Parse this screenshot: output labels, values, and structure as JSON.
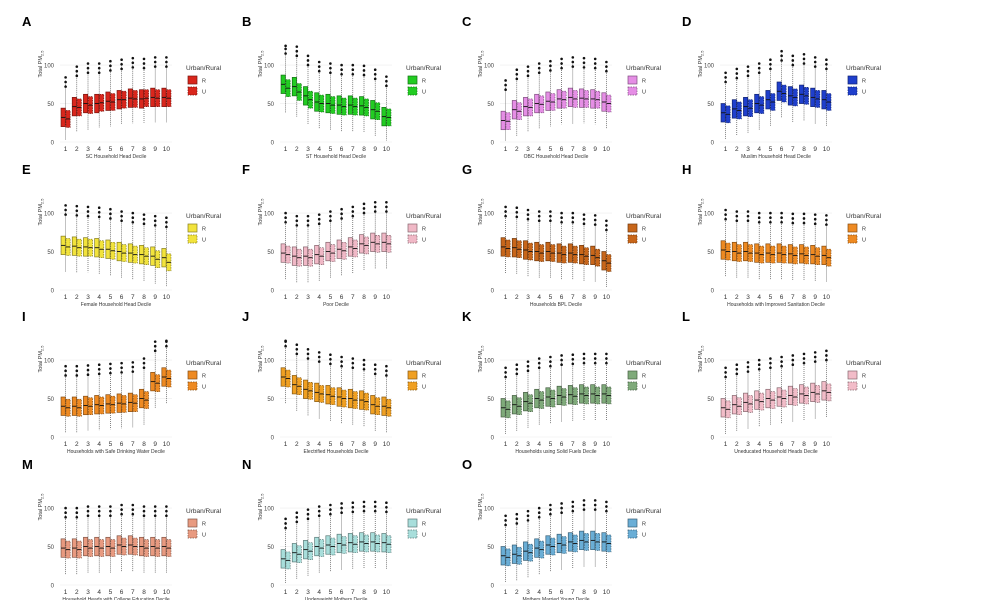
{
  "figure": {
    "y_axis_label": "Total PM",
    "y_axis_sub": "2.5",
    "legend_title": "Urban/Rural",
    "legend_r": "R",
    "legend_u": "U"
  },
  "chart_data": [
    {
      "panel": "A",
      "type": "boxplot",
      "title": "",
      "xlabel": "SC Household Head Decile",
      "ylabel": "Total PM2.5",
      "ylim": [
        0,
        130
      ],
      "yticks": [
        0,
        50,
        100
      ],
      "categories": [
        "1",
        "2",
        "3",
        "4",
        "5",
        "6",
        "7",
        "8",
        "9",
        "10"
      ],
      "color": "#d9261c",
      "series": [
        {
          "name": "R",
          "medians": [
            32,
            46,
            50,
            50,
            53,
            55,
            57,
            56,
            58,
            58
          ]
        },
        {
          "name": "U",
          "medians": [
            30,
            45,
            48,
            51,
            52,
            55,
            56,
            57,
            57,
            57
          ]
        }
      ]
    },
    {
      "panel": "B",
      "type": "boxplot",
      "title": "",
      "xlabel": "ST Household Head Decile",
      "ylabel": "Total PM2.5",
      "ylim": [
        0,
        130
      ],
      "yticks": [
        0,
        50,
        100
      ],
      "categories": [
        "1",
        "2",
        "3",
        "4",
        "5",
        "6",
        "7",
        "8",
        "9",
        "10"
      ],
      "color": "#22cc22",
      "series": [
        {
          "name": "R",
          "medians": [
            75,
            72,
            60,
            52,
            50,
            48,
            48,
            47,
            42,
            33
          ]
        },
        {
          "name": "U",
          "medians": [
            70,
            65,
            55,
            50,
            48,
            46,
            46,
            45,
            40,
            32
          ]
        }
      ]
    },
    {
      "panel": "C",
      "type": "boxplot",
      "title": "",
      "xlabel": "OBC Household Head Decile",
      "ylabel": "Total PM2.5",
      "ylim": [
        0,
        130
      ],
      "yticks": [
        0,
        50,
        100
      ],
      "categories": [
        "1",
        "2",
        "3",
        "4",
        "5",
        "6",
        "7",
        "8",
        "9",
        "10"
      ],
      "color": "#e58ee5",
      "series": [
        {
          "name": "R",
          "medians": [
            28,
            42,
            46,
            50,
            53,
            56,
            58,
            57,
            56,
            52
          ]
        },
        {
          "name": "U",
          "medians": [
            27,
            40,
            45,
            49,
            52,
            55,
            56,
            56,
            55,
            50
          ]
        }
      ]
    },
    {
      "panel": "D",
      "type": "boxplot",
      "title": "",
      "xlabel": "Muslim Household Head Decile",
      "ylabel": "Total PM2.5",
      "ylim": [
        0,
        130
      ],
      "yticks": [
        0,
        50,
        100
      ],
      "categories": [
        "1",
        "2",
        "3",
        "4",
        "5",
        "6",
        "7",
        "8",
        "9",
        "10"
      ],
      "color": "#1f3fcc",
      "series": [
        {
          "name": "R",
          "medians": [
            38,
            43,
            46,
            50,
            55,
            66,
            60,
            62,
            58,
            55
          ]
        },
        {
          "name": "U",
          "medians": [
            36,
            41,
            44,
            48,
            52,
            63,
            58,
            60,
            56,
            52
          ]
        }
      ]
    },
    {
      "panel": "E",
      "type": "boxplot",
      "title": "",
      "xlabel": "Female Household Head Decile",
      "ylabel": "Total PM2.5",
      "ylim": [
        0,
        130
      ],
      "yticks": [
        0,
        50,
        100
      ],
      "categories": [
        "1",
        "2",
        "3",
        "4",
        "5",
        "6",
        "7",
        "8",
        "9",
        "10"
      ],
      "color": "#f2e33c",
      "series": [
        {
          "name": "R",
          "medians": [
            58,
            57,
            56,
            55,
            53,
            50,
            48,
            46,
            44,
            42
          ]
        },
        {
          "name": "U",
          "medians": [
            56,
            55,
            55,
            53,
            51,
            48,
            46,
            44,
            40,
            36
          ]
        }
      ]
    },
    {
      "panel": "F",
      "type": "boxplot",
      "title": "",
      "xlabel": "Poor Decile",
      "ylabel": "Total PM2.5",
      "ylim": [
        0,
        130
      ],
      "yticks": [
        0,
        50,
        100
      ],
      "categories": [
        "1",
        "2",
        "3",
        "4",
        "5",
        "6",
        "7",
        "8",
        "9",
        "10"
      ],
      "color": "#f0b8c6",
      "series": [
        {
          "name": "R",
          "medians": [
            48,
            44,
            44,
            46,
            50,
            53,
            56,
            60,
            62,
            62
          ]
        },
        {
          "name": "U",
          "medians": [
            46,
            42,
            42,
            44,
            48,
            51,
            54,
            58,
            60,
            60
          ]
        }
      ]
    },
    {
      "panel": "G",
      "type": "boxplot",
      "title": "",
      "xlabel": "Households BPL Decile",
      "ylabel": "Total PM2.5",
      "ylim": [
        0,
        130
      ],
      "yticks": [
        0,
        50,
        100
      ],
      "categories": [
        "1",
        "2",
        "3",
        "4",
        "5",
        "6",
        "7",
        "8",
        "9",
        "10"
      ],
      "color": "#c8661a",
      "series": [
        {
          "name": "R",
          "medians": [
            56,
            55,
            52,
            50,
            50,
            48,
            48,
            46,
            45,
            38
          ]
        },
        {
          "name": "U",
          "medians": [
            54,
            53,
            50,
            48,
            48,
            46,
            46,
            44,
            42,
            35
          ]
        }
      ]
    },
    {
      "panel": "H",
      "type": "boxplot",
      "title": "",
      "xlabel": "Households with Improved Sanitation Decile",
      "ylabel": "Total PM2.5",
      "ylim": [
        0,
        130
      ],
      "yticks": [
        0,
        50,
        100
      ],
      "categories": [
        "1",
        "2",
        "3",
        "4",
        "5",
        "6",
        "7",
        "8",
        "9",
        "10"
      ],
      "color": "#ee8a22",
      "series": [
        {
          "name": "R",
          "medians": [
            52,
            50,
            50,
            48,
            48,
            48,
            47,
            47,
            46,
            45
          ]
        },
        {
          "name": "U",
          "medians": [
            50,
            48,
            48,
            46,
            46,
            46,
            45,
            45,
            44,
            42
          ]
        }
      ]
    },
    {
      "panel": "I",
      "type": "boxplot",
      "title": "",
      "xlabel": "Households with Safe Drinking Water Decile",
      "ylabel": "Total PM2.5",
      "ylim": [
        0,
        130
      ],
      "yticks": [
        0,
        50,
        100
      ],
      "categories": [
        "1",
        "2",
        "3",
        "4",
        "5",
        "6",
        "7",
        "8",
        "9",
        "10"
      ],
      "color": "#ee8a22",
      "series": [
        {
          "name": "R",
          "medians": [
            40,
            40,
            41,
            42,
            43,
            44,
            45,
            50,
            72,
            78
          ]
        },
        {
          "name": "U",
          "medians": [
            38,
            38,
            40,
            41,
            42,
            43,
            44,
            48,
            70,
            76
          ]
        }
      ]
    },
    {
      "panel": "J",
      "type": "boxplot",
      "title": "",
      "xlabel": "Electrified Households Decile",
      "ylabel": "Total PM2.5",
      "ylim": [
        0,
        130
      ],
      "yticks": [
        0,
        50,
        100
      ],
      "categories": [
        "1",
        "2",
        "3",
        "4",
        "5",
        "6",
        "7",
        "8",
        "9",
        "10"
      ],
      "color": "#f0a022",
      "series": [
        {
          "name": "R",
          "medians": [
            78,
            68,
            62,
            58,
            55,
            52,
            50,
            48,
            42,
            40
          ]
        },
        {
          "name": "U",
          "medians": [
            76,
            66,
            60,
            56,
            53,
            50,
            48,
            46,
            40,
            38
          ]
        }
      ]
    },
    {
      "panel": "K",
      "type": "boxplot",
      "title": "",
      "xlabel": "Households using Solid Fuels Decile",
      "ylabel": "Total PM2.5",
      "ylim": [
        0,
        130
      ],
      "yticks": [
        0,
        50,
        100
      ],
      "categories": [
        "1",
        "2",
        "3",
        "4",
        "5",
        "6",
        "7",
        "8",
        "9",
        "10"
      ],
      "color": "#7faa7a",
      "series": [
        {
          "name": "R",
          "medians": [
            38,
            42,
            46,
            50,
            52,
            54,
            55,
            56,
            56,
            56
          ]
        },
        {
          "name": "U",
          "medians": [
            36,
            40,
            44,
            48,
            50,
            52,
            53,
            54,
            54,
            54
          ]
        }
      ]
    },
    {
      "panel": "L",
      "type": "boxplot",
      "title": "",
      "xlabel": "Uneducated Household Heads Decile",
      "ylabel": "Total PM2.5",
      "ylim": [
        0,
        130
      ],
      "yticks": [
        0,
        50,
        100
      ],
      "categories": [
        "1",
        "2",
        "3",
        "4",
        "5",
        "6",
        "7",
        "8",
        "9",
        "10"
      ],
      "color": "#f2bcc8",
      "series": [
        {
          "name": "R",
          "medians": [
            38,
            42,
            45,
            48,
            50,
            52,
            54,
            56,
            58,
            60
          ]
        },
        {
          "name": "U",
          "medians": [
            36,
            40,
            43,
            46,
            48,
            50,
            52,
            54,
            56,
            58
          ]
        }
      ]
    },
    {
      "panel": "M",
      "type": "boxplot",
      "title": "",
      "xlabel": "Household Heads with College Education Decile",
      "ylabel": "Total PM2.5",
      "ylim": [
        0,
        130
      ],
      "yticks": [
        0,
        50,
        100
      ],
      "categories": [
        "1",
        "2",
        "3",
        "4",
        "5",
        "6",
        "7",
        "8",
        "9",
        "10"
      ],
      "color": "#e89a80",
      "series": [
        {
          "name": "R",
          "medians": [
            48,
            48,
            50,
            50,
            50,
            52,
            52,
            50,
            50,
            50
          ]
        },
        {
          "name": "U",
          "medians": [
            46,
            46,
            48,
            48,
            48,
            50,
            50,
            48,
            48,
            48
          ]
        }
      ]
    },
    {
      "panel": "N",
      "type": "boxplot",
      "title": "",
      "xlabel": "Underweight Mothers Decile",
      "ylabel": "Total PM2.5",
      "ylim": [
        0,
        130
      ],
      "yticks": [
        0,
        50,
        100
      ],
      "categories": [
        "1",
        "2",
        "3",
        "4",
        "5",
        "6",
        "7",
        "8",
        "9",
        "10"
      ],
      "color": "#a8dedb",
      "series": [
        {
          "name": "R",
          "medians": [
            34,
            42,
            46,
            50,
            52,
            54,
            55,
            56,
            56,
            55
          ]
        },
        {
          "name": "U",
          "medians": [
            32,
            40,
            44,
            48,
            50,
            52,
            53,
            54,
            54,
            53
          ]
        }
      ]
    },
    {
      "panel": "O",
      "type": "boxplot",
      "title": "",
      "xlabel": "Mothers Married Young Decile",
      "ylabel": "Total PM2.5",
      "ylim": [
        0,
        130
      ],
      "yticks": [
        0,
        50,
        100
      ],
      "categories": [
        "1",
        "2",
        "3",
        "4",
        "5",
        "6",
        "7",
        "8",
        "9",
        "10"
      ],
      "color": "#6aaed6",
      "series": [
        {
          "name": "R",
          "medians": [
            38,
            40,
            44,
            48,
            52,
            54,
            56,
            58,
            58,
            56
          ]
        },
        {
          "name": "U",
          "medians": [
            36,
            38,
            42,
            46,
            50,
            52,
            54,
            56,
            56,
            54
          ]
        }
      ]
    }
  ]
}
